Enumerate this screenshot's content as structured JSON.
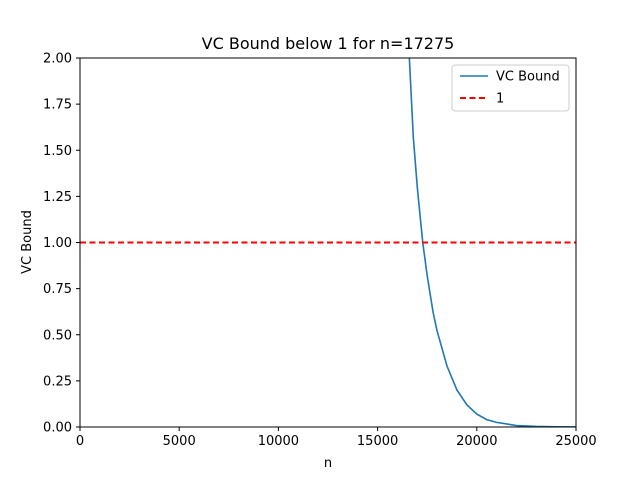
{
  "chart_data": {
    "type": "line",
    "title": "VC Bound below 1 for n=17275",
    "xlabel": "n",
    "ylabel": "VC Bound",
    "xlim": [
      0,
      25000
    ],
    "ylim": [
      0.0,
      2.0
    ],
    "xticks": [
      0,
      5000,
      10000,
      15000,
      20000,
      25000
    ],
    "xtick_labels": [
      "0",
      "5000",
      "10000",
      "15000",
      "20000",
      "25000"
    ],
    "yticks": [
      0.0,
      0.25,
      0.5,
      0.75,
      1.0,
      1.25,
      1.5,
      1.75,
      2.0
    ],
    "ytick_labels": [
      "0.00",
      "0.25",
      "0.50",
      "0.75",
      "1.00",
      "1.25",
      "1.50",
      "1.75",
      "2.00"
    ],
    "grid": false,
    "legend_position": "top-right",
    "series": [
      {
        "name": "VC Bound",
        "color": "#1f77b4",
        "style": "solid",
        "x": [
          16600,
          16800,
          17000,
          17275,
          17500,
          17800,
          18000,
          18500,
          19000,
          19500,
          20000,
          20500,
          21000,
          22000,
          23000,
          24000,
          25000
        ],
        "y": [
          2.0,
          1.57,
          1.3,
          1.0,
          0.82,
          0.62,
          0.52,
          0.33,
          0.2,
          0.12,
          0.07,
          0.04,
          0.025,
          0.008,
          0.003,
          0.001,
          0.0003
        ]
      },
      {
        "name": "1",
        "color": "#ff0000",
        "style": "dashed",
        "x": [
          0,
          25000
        ],
        "y": [
          1.0,
          1.0
        ]
      }
    ]
  }
}
